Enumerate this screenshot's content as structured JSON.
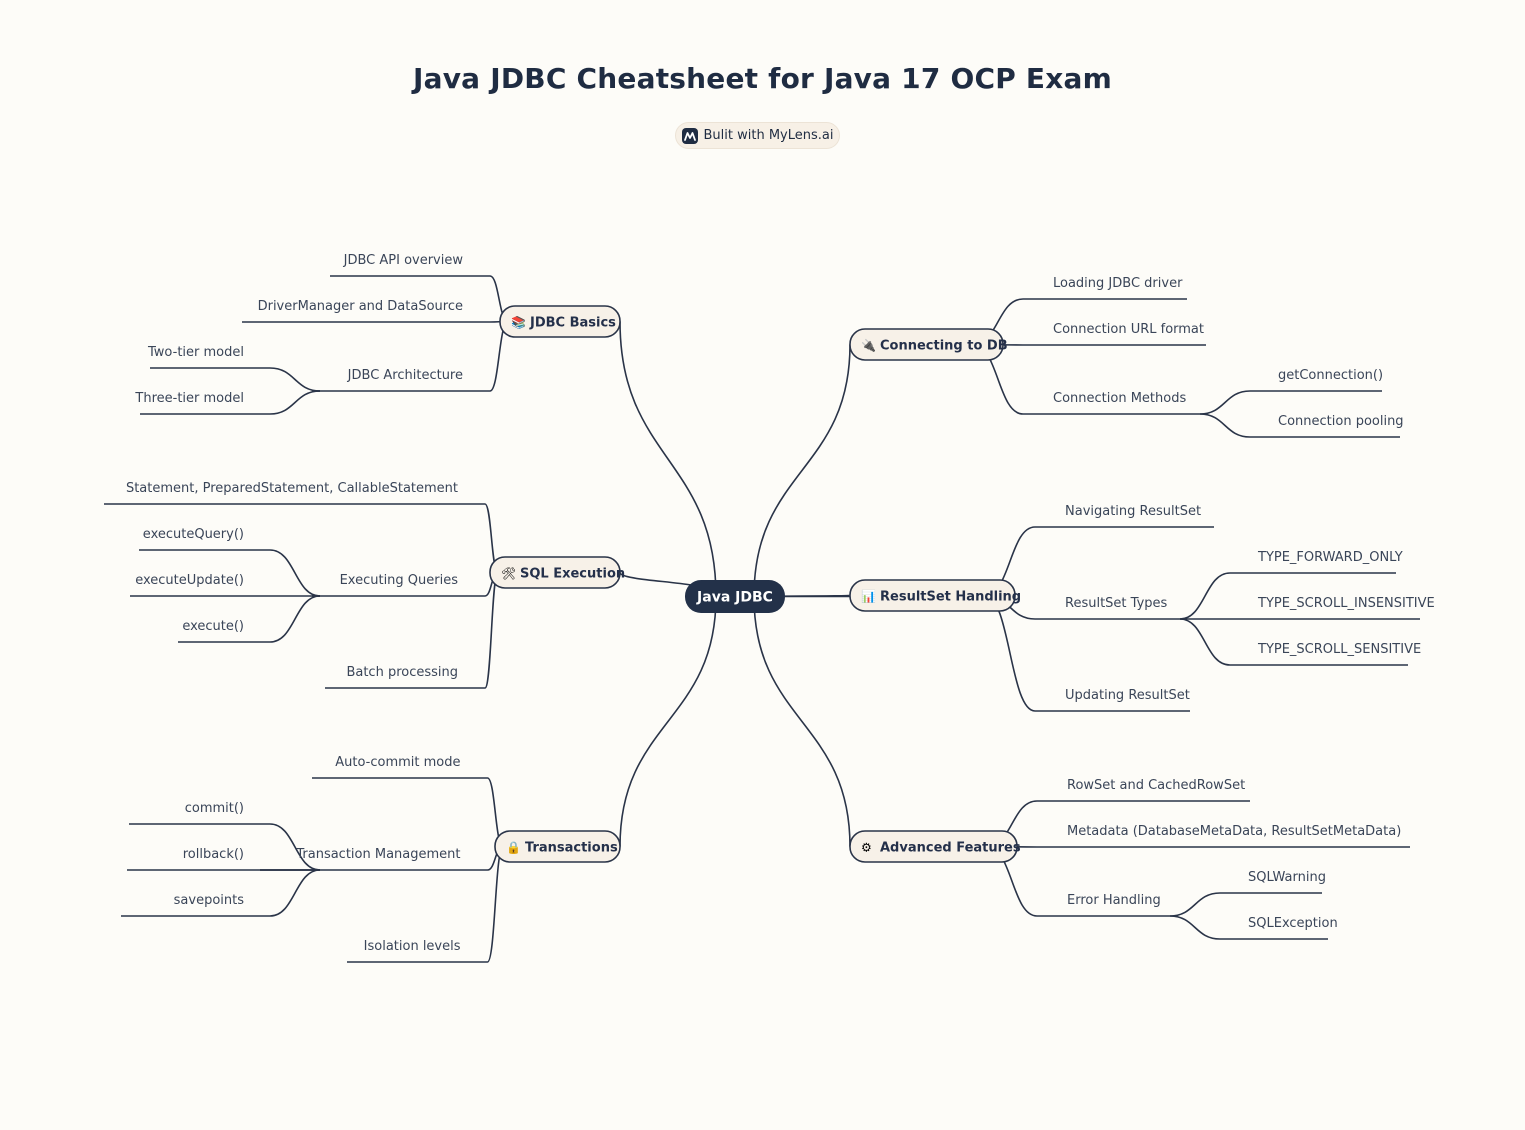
{
  "title": "Java JDBC Cheatsheet for Java 17 OCP Exam",
  "badge": {
    "text": "Bulit with MyLens.ai",
    "icon": "mylens-logo-icon"
  },
  "colors": {
    "background": "#fdfcf8",
    "line": "#2a3448",
    "root": "#233149",
    "node_fill": "#f7f1e8",
    "text": "#2b3547"
  },
  "root": {
    "label": "Java JDBC"
  },
  "branches": [
    {
      "id": "jdbc-basics",
      "label": "JDBC Basics",
      "icon": "books-icon",
      "emoji": "📚",
      "children": [
        {
          "label": "JDBC API overview"
        },
        {
          "label": "DriverManager and DataSource"
        },
        {
          "label": "JDBC Architecture",
          "children": [
            {
              "label": "Two-tier model"
            },
            {
              "label": "Three-tier model"
            }
          ]
        }
      ]
    },
    {
      "id": "sql-execution",
      "label": "SQL Execution",
      "icon": "tools-icon",
      "emoji": "🛠",
      "children": [
        {
          "label": "Statement, PreparedStatement, CallableStatement"
        },
        {
          "label": "Executing Queries",
          "children": [
            {
              "label": "executeQuery()"
            },
            {
              "label": "executeUpdate()"
            },
            {
              "label": "execute()"
            }
          ]
        },
        {
          "label": "Batch processing"
        }
      ]
    },
    {
      "id": "transactions",
      "label": "Transactions",
      "icon": "lock-icon",
      "emoji": "🔒",
      "children": [
        {
          "label": "Auto-commit mode"
        },
        {
          "label": "Transaction Management",
          "children": [
            {
              "label": "commit()"
            },
            {
              "label": "rollback()"
            },
            {
              "label": "savepoints"
            }
          ]
        },
        {
          "label": "Isolation levels"
        }
      ]
    },
    {
      "id": "connecting",
      "label": "Connecting to DB",
      "icon": "plug-icon",
      "emoji": "🔌",
      "children": [
        {
          "label": "Loading JDBC driver"
        },
        {
          "label": "Connection URL format"
        },
        {
          "label": "Connection Methods",
          "children": [
            {
              "label": "getConnection()"
            },
            {
              "label": "Connection pooling"
            }
          ]
        }
      ]
    },
    {
      "id": "resultset",
      "label": "ResultSet Handling",
      "icon": "bar-chart-icon",
      "emoji": "📊",
      "children": [
        {
          "label": "Navigating ResultSet"
        },
        {
          "label": "ResultSet Types",
          "children": [
            {
              "label": "TYPE_FORWARD_ONLY"
            },
            {
              "label": "TYPE_SCROLL_INSENSITIVE"
            },
            {
              "label": "TYPE_SCROLL_SENSITIVE"
            }
          ]
        },
        {
          "label": "Updating ResultSet"
        }
      ]
    },
    {
      "id": "advanced",
      "label": "Advanced Features",
      "icon": "gear-icon",
      "emoji": "⚙",
      "children": [
        {
          "label": "RowSet and CachedRowSet"
        },
        {
          "label": "Metadata (DatabaseMetaData, ResultSetMetaData)"
        },
        {
          "label": "Error Handling",
          "children": [
            {
              "label": "SQLWarning"
            },
            {
              "label": "SQLException"
            }
          ]
        }
      ]
    }
  ]
}
